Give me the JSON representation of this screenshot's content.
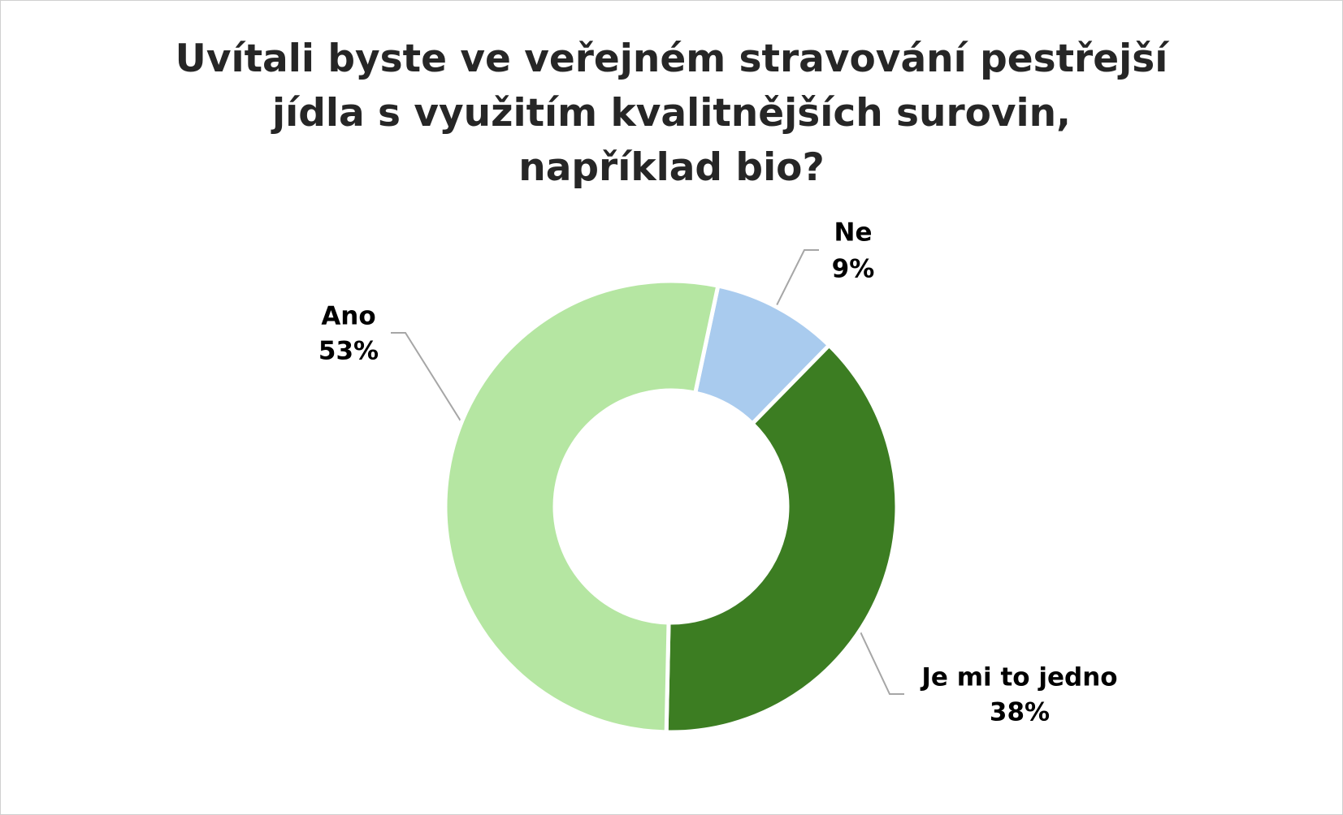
{
  "chart_data": {
    "type": "donut",
    "title": "Uvítali byste ve veřejném stravování pestřejší\njídla s využitím kvalitnějších surovin,\nnapříklad bio?",
    "categories": [
      "Ne",
      "Je mi to jedno",
      "Ano"
    ],
    "values": [
      9,
      38,
      53
    ],
    "value_labels": [
      "9%",
      "38%",
      "53%"
    ],
    "colors": [
      "#a9cbee",
      "#3c7d22",
      "#b5e6a2"
    ]
  }
}
